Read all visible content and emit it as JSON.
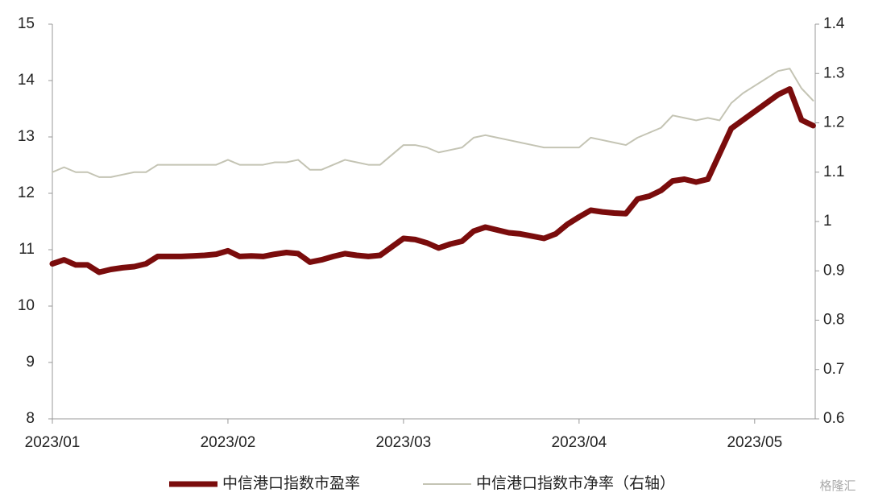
{
  "chart_data": {
    "type": "line",
    "categories": [
      "2023/01",
      null,
      null,
      null,
      null,
      null,
      null,
      null,
      null,
      null,
      null,
      null,
      null,
      null,
      null,
      "2023/02",
      null,
      null,
      null,
      null,
      null,
      null,
      null,
      null,
      null,
      null,
      null,
      null,
      null,
      null,
      "2023/03",
      null,
      null,
      null,
      null,
      null,
      null,
      null,
      null,
      null,
      null,
      null,
      null,
      null,
      null,
      "2023/04",
      null,
      null,
      null,
      null,
      null,
      null,
      null,
      null,
      null,
      null,
      null,
      null,
      null,
      null,
      "2023/05",
      null,
      null,
      null,
      null,
      null
    ],
    "series": [
      {
        "name": "中信港口指数市盈率",
        "color": "#7a0c0c",
        "axis": "y",
        "width": 7,
        "values": [
          10.75,
          10.82,
          10.73,
          10.73,
          10.6,
          10.65,
          10.68,
          10.7,
          10.75,
          10.88,
          10.88,
          10.88,
          10.89,
          10.9,
          10.92,
          10.98,
          10.88,
          10.89,
          10.88,
          10.92,
          10.95,
          10.93,
          10.78,
          10.82,
          10.88,
          10.93,
          10.9,
          10.88,
          10.9,
          11.05,
          11.2,
          11.18,
          11.12,
          11.03,
          11.1,
          11.15,
          11.33,
          11.4,
          11.35,
          11.3,
          11.28,
          11.24,
          11.2,
          11.28,
          11.45,
          11.58,
          11.7,
          11.67,
          11.65,
          11.64,
          11.9,
          11.95,
          12.05,
          12.22,
          12.25,
          12.2,
          12.25,
          12.7,
          13.15,
          13.3,
          13.45,
          13.6,
          13.75,
          13.85,
          13.3,
          13.2
        ]
      },
      {
        "name": "中信港口指数市净率（右轴）",
        "color": "#c4c4b4",
        "axis": "y2",
        "width": 2,
        "values": [
          1.1,
          1.11,
          1.1,
          1.1,
          1.09,
          1.09,
          1.095,
          1.1,
          1.1,
          1.115,
          1.115,
          1.115,
          1.115,
          1.115,
          1.115,
          1.125,
          1.115,
          1.115,
          1.115,
          1.12,
          1.12,
          1.125,
          1.105,
          1.105,
          1.115,
          1.125,
          1.12,
          1.115,
          1.115,
          1.135,
          1.155,
          1.155,
          1.15,
          1.14,
          1.145,
          1.15,
          1.17,
          1.175,
          1.17,
          1.165,
          1.16,
          1.155,
          1.15,
          1.15,
          1.15,
          1.15,
          1.17,
          1.165,
          1.16,
          1.155,
          1.17,
          1.18,
          1.19,
          1.215,
          1.21,
          1.205,
          1.21,
          1.205,
          1.24,
          1.26,
          1.275,
          1.29,
          1.305,
          1.31,
          1.27,
          1.245
        ]
      }
    ],
    "ylim": [
      8,
      15
    ],
    "yticks": [
      8,
      9,
      10,
      11,
      12,
      13,
      14,
      15
    ],
    "y2lim": [
      0.6,
      1.4
    ],
    "y2ticks": [
      0.6,
      0.7,
      0.8,
      0.9,
      1,
      1.1,
      1.2,
      1.3,
      1.4
    ],
    "grid": false,
    "legend": "bottom",
    "watermark": "格隆汇"
  }
}
